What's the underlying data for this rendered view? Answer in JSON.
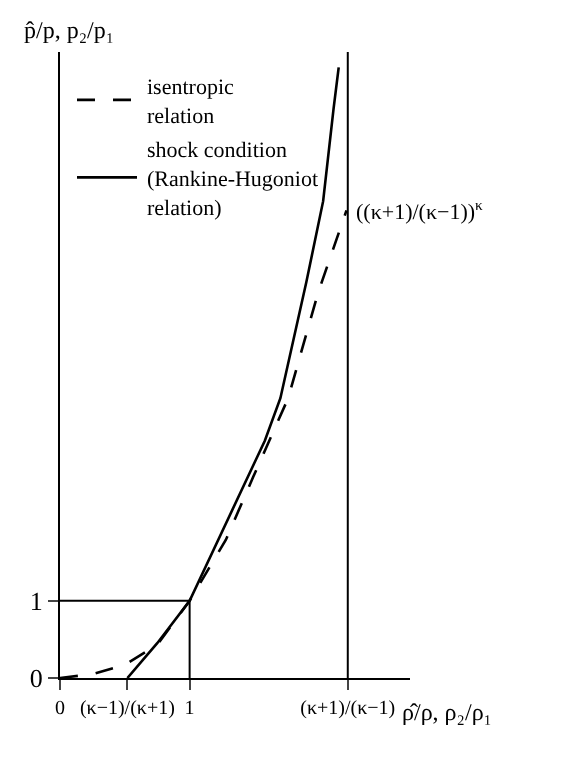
{
  "chart_data": {
    "type": "line",
    "xlabel": "ρ̂/ρ, ρ₂/ρ₁",
    "ylabel": "p̂/p, p₂/p₁",
    "series": [
      {
        "name": "isentropic relation",
        "color": "#000000",
        "line_style": "dashed",
        "x": [
          0,
          0.25,
          0.5,
          0.75,
          1,
          1.28,
          1.49,
          1.76,
          1.99,
          2.21
        ],
        "values": [
          0,
          0.05,
          0.17,
          0.43,
          1,
          1.79,
          2.6,
          3.62,
          4.98,
          6.05
        ]
      },
      {
        "name": "shock condition (Rankine-Hugoniot relation)",
        "color": "#000000",
        "line_style": "solid",
        "x": [
          0.52,
          0.75,
          1,
          1.58,
          1.7,
          1.9,
          2.03,
          2.11,
          2.15
        ],
        "values": [
          0,
          0.45,
          1,
          3.07,
          3.62,
          5.12,
          6.17,
          7.36,
          7.9
        ]
      }
    ],
    "xlim": [
      0,
      2.7
    ],
    "ylim": [
      0,
      8.1
    ],
    "xticks": [
      0,
      {
        "value": 0.52,
        "label": "(κ−1)/(κ+1)"
      },
      1,
      {
        "value": 2.22,
        "label": "(κ+1)/(κ−1)"
      }
    ],
    "yticks": [
      0,
      1
    ],
    "ref_lines": [
      {
        "axis": "x",
        "value": 2.22,
        "label": null
      },
      {
        "axis": "x",
        "value": 1,
        "label": null
      },
      {
        "axis": "y",
        "value": 1,
        "label": null
      }
    ],
    "annotations": [
      {
        "text": "((κ+1)/(κ−1))$^{κ}$",
        "x": 2.21,
        "y": 6.05
      }
    ],
    "legend": "top left"
  }
}
